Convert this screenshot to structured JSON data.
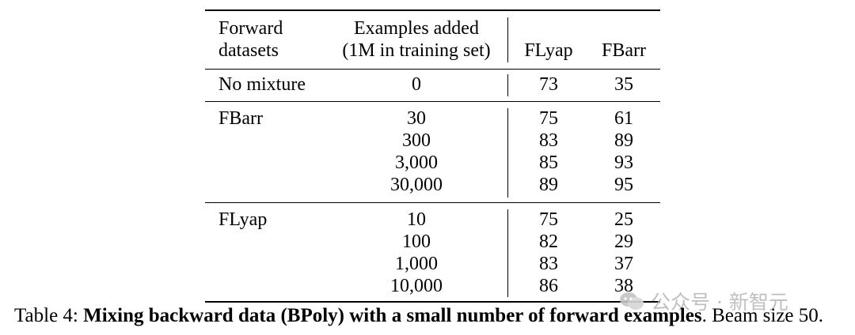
{
  "table": {
    "headers": {
      "datasets": [
        "Forward",
        "datasets"
      ],
      "examples": [
        "Examples added",
        "(1M in training set)"
      ],
      "flyap": "FLyap",
      "fbarr": "FBarr"
    },
    "rows": [
      {
        "dataset": "No mixture",
        "examples": "0",
        "flyap": "73",
        "fbarr": "35"
      },
      {
        "dataset": "FBarr",
        "examples": "30",
        "flyap": "75",
        "fbarr": "61"
      },
      {
        "dataset": "",
        "examples": "300",
        "flyap": "83",
        "fbarr": "89"
      },
      {
        "dataset": "",
        "examples": "3,000",
        "flyap": "85",
        "fbarr": "93"
      },
      {
        "dataset": "",
        "examples": "30,000",
        "flyap": "89",
        "fbarr": "95"
      },
      {
        "dataset": "FLyap",
        "examples": "10",
        "flyap": "75",
        "fbarr": "25"
      },
      {
        "dataset": "",
        "examples": "100",
        "flyap": "82",
        "fbarr": "29"
      },
      {
        "dataset": "",
        "examples": "1,000",
        "flyap": "83",
        "fbarr": "37"
      },
      {
        "dataset": "",
        "examples": "10,000",
        "flyap": "86",
        "fbarr": "38"
      }
    ]
  },
  "caption": {
    "prefix": "Table 4: ",
    "bold": "Mixing backward data (BPoly) with a small number of forward examples",
    "suffix": ". Beam size 50."
  },
  "watermark": {
    "text": "公众号 · 新智元",
    "icon": "wechat-icon"
  }
}
